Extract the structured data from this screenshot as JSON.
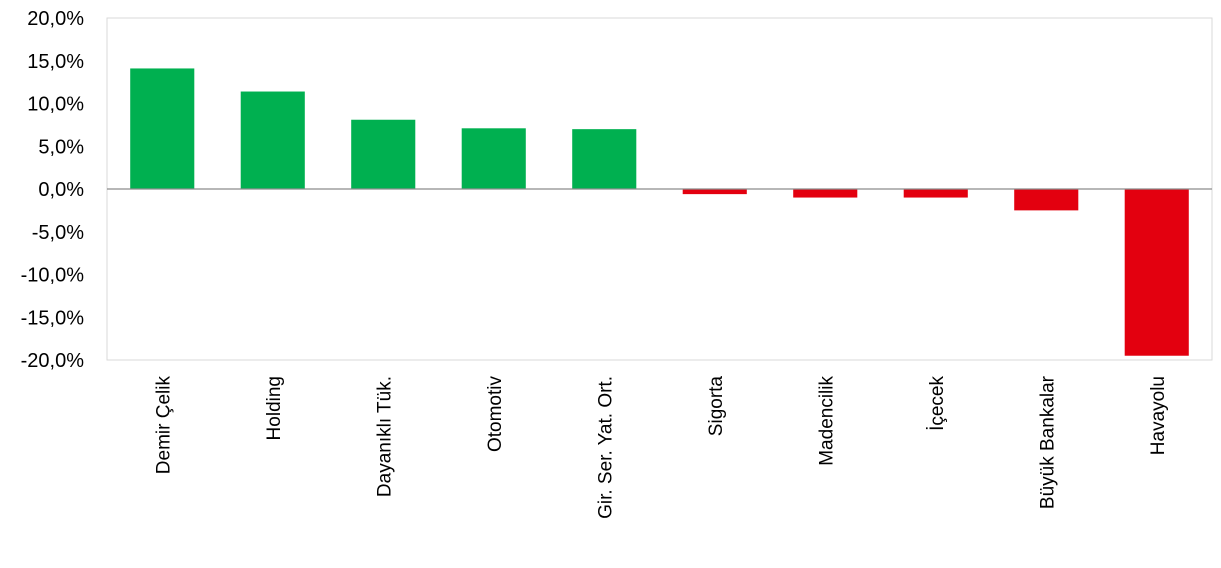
{
  "chart_data": {
    "type": "bar",
    "title": "",
    "xlabel": "",
    "ylabel": "",
    "categories": [
      "Demir Çelik",
      "Holding",
      "Dayanıklı Tük.",
      "Otomotiv",
      "Gir. Ser. Yat. Ort.",
      "Sigorta",
      "Madencilik",
      "İçecek",
      "Büyük Bankalar",
      "Havayolu"
    ],
    "values": [
      14.1,
      11.4,
      8.1,
      7.1,
      7.0,
      -0.6,
      -1.0,
      -1.0,
      -2.5,
      -19.5
    ],
    "ylim": [
      -20,
      20
    ],
    "yticks": [
      20,
      15,
      10,
      5,
      0,
      -5,
      -10,
      -15,
      -20
    ],
    "ytick_labels": [
      "20,0%",
      "15,0%",
      "10,0%",
      "5,0%",
      "0,0%",
      "-5,0%",
      "-10,0%",
      "-15,0%",
      "-20,0%"
    ],
    "grid": false,
    "legend": "none",
    "colors": {
      "positive": "#00b050",
      "negative": "#e3000f",
      "zero_line": "#8c8c8c",
      "frame": "#d9d9d9"
    }
  }
}
